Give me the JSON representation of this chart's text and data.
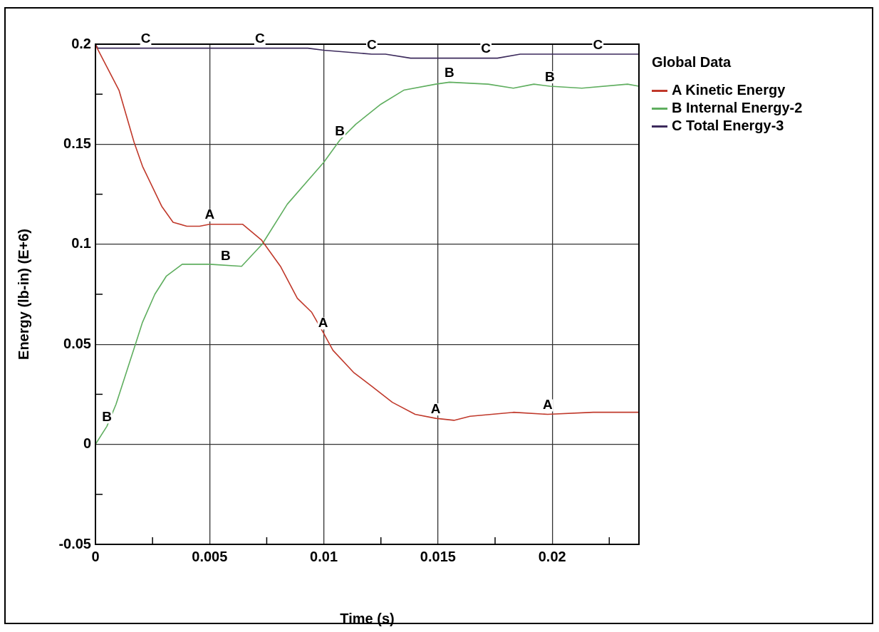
{
  "chart_data": {
    "type": "line",
    "xlabel": "Time (s)",
    "ylabel": "Energy (lb-in) (E+6)",
    "legend_title": "Global Data",
    "legend": "right",
    "grid": true,
    "marker": "none",
    "line_style": "solid",
    "xlim": [
      0,
      0.0238
    ],
    "ylim": [
      -0.05,
      0.2
    ],
    "xticks": [
      0,
      {
        "value": 0.0025,
        "label": null
      },
      0.005,
      {
        "value": 0.0075,
        "label": null
      },
      0.01,
      {
        "value": 0.0125,
        "label": null
      },
      0.015,
      {
        "value": 0.0175,
        "label": null
      },
      0.02,
      {
        "value": 0.0225,
        "label": null
      }
    ],
    "yticks": [
      -0.05,
      {
        "value": -0.025,
        "label": null
      },
      0,
      {
        "value": 0.025,
        "label": null
      },
      0.05,
      {
        "value": 0.075,
        "label": null
      },
      0.1,
      {
        "value": 0.125,
        "label": null
      },
      0.15,
      {
        "value": 0.175,
        "label": null
      },
      0.2
    ],
    "series": [
      {
        "name": "A Kinetic Energy",
        "color": "#c0392b",
        "x": [
          0,
          3e-05,
          0.00103,
          0.00169,
          0.00206,
          0.0029,
          0.0034,
          0.004,
          0.00456,
          0.005,
          0.00644,
          0.00728,
          0.0081,
          0.00884,
          0.00947,
          0.00997,
          0.0104,
          0.0113,
          0.0121,
          0.013,
          0.014,
          0.0149,
          0.0157,
          0.0164,
          0.0183,
          0.0198,
          0.0218,
          0.0238
        ],
        "values": [
          0.2,
          0.199,
          0.177,
          0.151,
          0.139,
          0.119,
          0.111,
          0.109,
          0.109,
          0.11,
          0.11,
          0.102,
          0.089,
          0.073,
          0.066,
          0.056,
          0.047,
          0.036,
          0.029,
          0.021,
          0.015,
          0.013,
          0.012,
          0.014,
          0.016,
          0.015,
          0.016,
          0.016
        ]
      },
      {
        "name": "B Internal Energy-2",
        "color": "#5fae5f",
        "x": [
          0,
          0.0005,
          0.0009,
          0.00175,
          0.00206,
          0.0026,
          0.0031,
          0.0038,
          0.005,
          0.0064,
          0.0073,
          0.0084,
          0.01,
          0.0107,
          0.0114,
          0.0125,
          0.0135,
          0.0149,
          0.0155,
          0.0172,
          0.0183,
          0.0192,
          0.0199,
          0.0213,
          0.0233,
          0.0238
        ],
        "values": [
          0,
          0.009,
          0.02,
          0.05,
          0.061,
          0.075,
          0.084,
          0.09,
          0.09,
          0.089,
          0.1,
          0.12,
          0.141,
          0.152,
          0.16,
          0.17,
          0.177,
          0.18,
          0.181,
          0.18,
          0.178,
          0.18,
          0.179,
          0.178,
          0.18,
          0.179
        ]
      },
      {
        "name": "C Total Energy-3",
        "color": "#3c2a5c",
        "x": [
          0,
          0.0001,
          0.005,
          0.0093,
          0.01,
          0.0121,
          0.0127,
          0.0138,
          0.0149,
          0.0176,
          0.0186,
          0.021,
          0.0212,
          0.0238
        ],
        "values": [
          0.2,
          0.198,
          0.198,
          0.198,
          0.197,
          0.195,
          0.195,
          0.193,
          0.193,
          0.193,
          0.195,
          0.195,
          0.195,
          0.195
        ]
      }
    ],
    "annotations": [
      {
        "text": "C",
        "x": 0.0022,
        "y": 0.198
      },
      {
        "text": "C",
        "x": 0.0072,
        "y": 0.198
      },
      {
        "text": "C",
        "x": 0.0121,
        "y": 0.195
      },
      {
        "text": "C",
        "x": 0.0171,
        "y": 0.193
      },
      {
        "text": "C",
        "x": 0.022,
        "y": 0.195
      },
      {
        "text": "B",
        "x": 0.0005,
        "y": 0.009
      },
      {
        "text": "B",
        "x": 0.0057,
        "y": 0.0895
      },
      {
        "text": "B",
        "x": 0.0107,
        "y": 0.152
      },
      {
        "text": "B",
        "x": 0.0155,
        "y": 0.181
      },
      {
        "text": "B",
        "x": 0.0199,
        "y": 0.179
      },
      {
        "text": "A",
        "x": 0.005,
        "y": 0.11
      },
      {
        "text": "A",
        "x": 0.00997,
        "y": 0.056
      },
      {
        "text": "A",
        "x": 0.0149,
        "y": 0.013
      },
      {
        "text": "A",
        "x": 0.0198,
        "y": 0.015
      }
    ]
  }
}
